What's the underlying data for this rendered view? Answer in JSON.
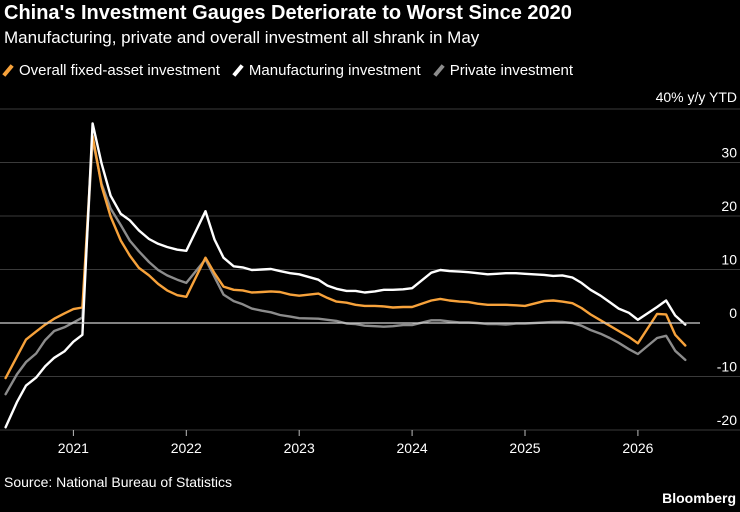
{
  "title": "China's Investment Gauges Deteriorate to Worst Since 2020",
  "subtitle": "Manufacturing, private and overall investment all shrank in May",
  "source": "Source: National Bureau of Statistics",
  "brand": "Bloomberg",
  "colors": {
    "background": "#000000",
    "overall": "#f7a23b",
    "manufacturing": "#ffffff",
    "private": "#8c8c8c",
    "gridline": "#3a3a3a",
    "zeroline": "#cfcfcf"
  },
  "chart_data": {
    "type": "line",
    "ylabel": "40% y/y YTD",
    "ylim": [
      -20,
      40
    ],
    "yticks": [
      30,
      20,
      10,
      0,
      -10,
      -20
    ],
    "xlim": [
      2020.35,
      2026.55
    ],
    "xticks": [
      2021,
      2022,
      2023,
      2024,
      2025,
      2026
    ],
    "grid": true,
    "legend_position": "top-left",
    "series": [
      {
        "name": "Overall fixed-asset investment",
        "color": "#f7a23b",
        "points": [
          [
            2020.4,
            -10.3
          ],
          [
            2020.5,
            -6.3
          ],
          [
            2020.58,
            -3.1
          ],
          [
            2020.67,
            -1.6
          ],
          [
            2020.75,
            -0.3
          ],
          [
            2020.83,
            0.8
          ],
          [
            2020.92,
            1.8
          ],
          [
            2021.0,
            2.6
          ],
          [
            2021.08,
            2.9
          ],
          [
            2021.17,
            35.0
          ],
          [
            2021.25,
            25.6
          ],
          [
            2021.33,
            19.9
          ],
          [
            2021.42,
            15.4
          ],
          [
            2021.5,
            12.6
          ],
          [
            2021.58,
            10.3
          ],
          [
            2021.67,
            8.9
          ],
          [
            2021.75,
            7.3
          ],
          [
            2021.83,
            6.1
          ],
          [
            2021.92,
            5.2
          ],
          [
            2022.0,
            4.9
          ],
          [
            2022.17,
            12.2
          ],
          [
            2022.25,
            9.3
          ],
          [
            2022.33,
            6.8
          ],
          [
            2022.42,
            6.2
          ],
          [
            2022.5,
            6.1
          ],
          [
            2022.58,
            5.7
          ],
          [
            2022.67,
            5.8
          ],
          [
            2022.75,
            5.9
          ],
          [
            2022.83,
            5.8
          ],
          [
            2022.92,
            5.3
          ],
          [
            2023.0,
            5.1
          ],
          [
            2023.17,
            5.5
          ],
          [
            2023.25,
            4.7
          ],
          [
            2023.33,
            4.0
          ],
          [
            2023.42,
            3.8
          ],
          [
            2023.5,
            3.4
          ],
          [
            2023.58,
            3.2
          ],
          [
            2023.67,
            3.2
          ],
          [
            2023.75,
            3.1
          ],
          [
            2023.83,
            2.9
          ],
          [
            2023.92,
            3.0
          ],
          [
            2024.0,
            3.0
          ],
          [
            2024.17,
            4.2
          ],
          [
            2024.25,
            4.5
          ],
          [
            2024.33,
            4.2
          ],
          [
            2024.42,
            4.0
          ],
          [
            2024.5,
            3.9
          ],
          [
            2024.58,
            3.6
          ],
          [
            2024.67,
            3.4
          ],
          [
            2024.75,
            3.4
          ],
          [
            2024.83,
            3.4
          ],
          [
            2024.92,
            3.3
          ],
          [
            2025.0,
            3.2
          ],
          [
            2025.17,
            4.1
          ],
          [
            2025.25,
            4.2
          ],
          [
            2025.33,
            4.0
          ],
          [
            2025.42,
            3.7
          ],
          [
            2025.5,
            2.8
          ],
          [
            2025.58,
            1.6
          ],
          [
            2025.67,
            0.5
          ],
          [
            2025.75,
            -0.5
          ],
          [
            2025.83,
            -1.5
          ],
          [
            2025.92,
            -2.6
          ],
          [
            2026.0,
            -3.8
          ],
          [
            2026.17,
            1.7
          ],
          [
            2026.25,
            1.6
          ],
          [
            2026.33,
            -2.2
          ],
          [
            2026.42,
            -4.2
          ]
        ]
      },
      {
        "name": "Manufacturing investment",
        "color": "#ffffff",
        "points": [
          [
            2020.4,
            -19.5
          ],
          [
            2020.5,
            -14.8
          ],
          [
            2020.58,
            -11.7
          ],
          [
            2020.67,
            -10.2
          ],
          [
            2020.75,
            -8.1
          ],
          [
            2020.83,
            -6.5
          ],
          [
            2020.92,
            -5.3
          ],
          [
            2021.0,
            -3.5
          ],
          [
            2021.08,
            -2.2
          ],
          [
            2021.17,
            37.3
          ],
          [
            2021.25,
            29.8
          ],
          [
            2021.33,
            23.8
          ],
          [
            2021.42,
            20.4
          ],
          [
            2021.5,
            19.2
          ],
          [
            2021.58,
            17.3
          ],
          [
            2021.67,
            15.7
          ],
          [
            2021.75,
            14.8
          ],
          [
            2021.83,
            14.2
          ],
          [
            2021.92,
            13.7
          ],
          [
            2022.0,
            13.5
          ],
          [
            2022.17,
            20.9
          ],
          [
            2022.25,
            15.6
          ],
          [
            2022.33,
            12.2
          ],
          [
            2022.42,
            10.6
          ],
          [
            2022.5,
            10.4
          ],
          [
            2022.58,
            9.9
          ],
          [
            2022.67,
            10.0
          ],
          [
            2022.75,
            10.1
          ],
          [
            2022.83,
            9.7
          ],
          [
            2022.92,
            9.3
          ],
          [
            2023.0,
            9.1
          ],
          [
            2023.17,
            8.1
          ],
          [
            2023.25,
            7.0
          ],
          [
            2023.33,
            6.4
          ],
          [
            2023.42,
            6.0
          ],
          [
            2023.5,
            6.0
          ],
          [
            2023.58,
            5.7
          ],
          [
            2023.67,
            5.9
          ],
          [
            2023.75,
            6.2
          ],
          [
            2023.83,
            6.2
          ],
          [
            2023.92,
            6.3
          ],
          [
            2024.0,
            6.5
          ],
          [
            2024.17,
            9.4
          ],
          [
            2024.25,
            9.9
          ],
          [
            2024.33,
            9.7
          ],
          [
            2024.42,
            9.6
          ],
          [
            2024.5,
            9.5
          ],
          [
            2024.58,
            9.3
          ],
          [
            2024.67,
            9.1
          ],
          [
            2024.75,
            9.2
          ],
          [
            2024.83,
            9.3
          ],
          [
            2024.92,
            9.3
          ],
          [
            2025.0,
            9.2
          ],
          [
            2025.17,
            9.0
          ],
          [
            2025.25,
            8.8
          ],
          [
            2025.33,
            8.9
          ],
          [
            2025.42,
            8.5
          ],
          [
            2025.5,
            7.5
          ],
          [
            2025.58,
            6.2
          ],
          [
            2025.67,
            5.1
          ],
          [
            2025.75,
            3.9
          ],
          [
            2025.83,
            2.7
          ],
          [
            2025.92,
            1.9
          ],
          [
            2026.0,
            0.6
          ],
          [
            2026.17,
            3.0
          ],
          [
            2026.25,
            4.2
          ],
          [
            2026.33,
            1.4
          ],
          [
            2026.42,
            -0.3
          ]
        ]
      },
      {
        "name": "Private investment",
        "color": "#8c8c8c",
        "points": [
          [
            2020.4,
            -13.3
          ],
          [
            2020.5,
            -9.6
          ],
          [
            2020.58,
            -7.3
          ],
          [
            2020.67,
            -5.7
          ],
          [
            2020.75,
            -3.2
          ],
          [
            2020.83,
            -1.5
          ],
          [
            2020.92,
            -0.8
          ],
          [
            2021.0,
            0.1
          ],
          [
            2021.08,
            1.0
          ],
          [
            2021.17,
            34.3
          ],
          [
            2021.25,
            26.0
          ],
          [
            2021.33,
            21.4
          ],
          [
            2021.42,
            18.3
          ],
          [
            2021.5,
            15.4
          ],
          [
            2021.58,
            13.4
          ],
          [
            2021.67,
            11.4
          ],
          [
            2021.75,
            9.9
          ],
          [
            2021.83,
            8.9
          ],
          [
            2021.92,
            8.1
          ],
          [
            2022.0,
            7.5
          ],
          [
            2022.17,
            11.9
          ],
          [
            2022.25,
            8.6
          ],
          [
            2022.33,
            5.3
          ],
          [
            2022.42,
            4.1
          ],
          [
            2022.5,
            3.5
          ],
          [
            2022.58,
            2.7
          ],
          [
            2022.67,
            2.3
          ],
          [
            2022.75,
            2.0
          ],
          [
            2022.83,
            1.5
          ],
          [
            2022.92,
            1.2
          ],
          [
            2023.0,
            0.9
          ],
          [
            2023.17,
            0.8
          ],
          [
            2023.25,
            0.6
          ],
          [
            2023.33,
            0.4
          ],
          [
            2023.42,
            -0.1
          ],
          [
            2023.5,
            -0.2
          ],
          [
            2023.58,
            -0.5
          ],
          [
            2023.67,
            -0.6
          ],
          [
            2023.75,
            -0.7
          ],
          [
            2023.83,
            -0.6
          ],
          [
            2023.92,
            -0.4
          ],
          [
            2024.0,
            -0.4
          ],
          [
            2024.17,
            0.5
          ],
          [
            2024.25,
            0.5
          ],
          [
            2024.33,
            0.3
          ],
          [
            2024.42,
            0.1
          ],
          [
            2024.5,
            0.1
          ],
          [
            2024.58,
            0.0
          ],
          [
            2024.67,
            -0.2
          ],
          [
            2024.75,
            -0.2
          ],
          [
            2024.83,
            -0.3
          ],
          [
            2024.92,
            -0.1
          ],
          [
            2025.0,
            -0.1
          ],
          [
            2025.17,
            0.1
          ],
          [
            2025.25,
            0.2
          ],
          [
            2025.33,
            0.2
          ],
          [
            2025.42,
            0.0
          ],
          [
            2025.5,
            -0.5
          ],
          [
            2025.58,
            -1.3
          ],
          [
            2025.67,
            -2.0
          ],
          [
            2025.75,
            -2.8
          ],
          [
            2025.83,
            -3.7
          ],
          [
            2025.92,
            -4.9
          ],
          [
            2026.0,
            -5.8
          ],
          [
            2026.17,
            -2.8
          ],
          [
            2026.25,
            -2.4
          ],
          [
            2026.33,
            -5.2
          ],
          [
            2026.42,
            -6.9
          ]
        ]
      }
    ]
  }
}
